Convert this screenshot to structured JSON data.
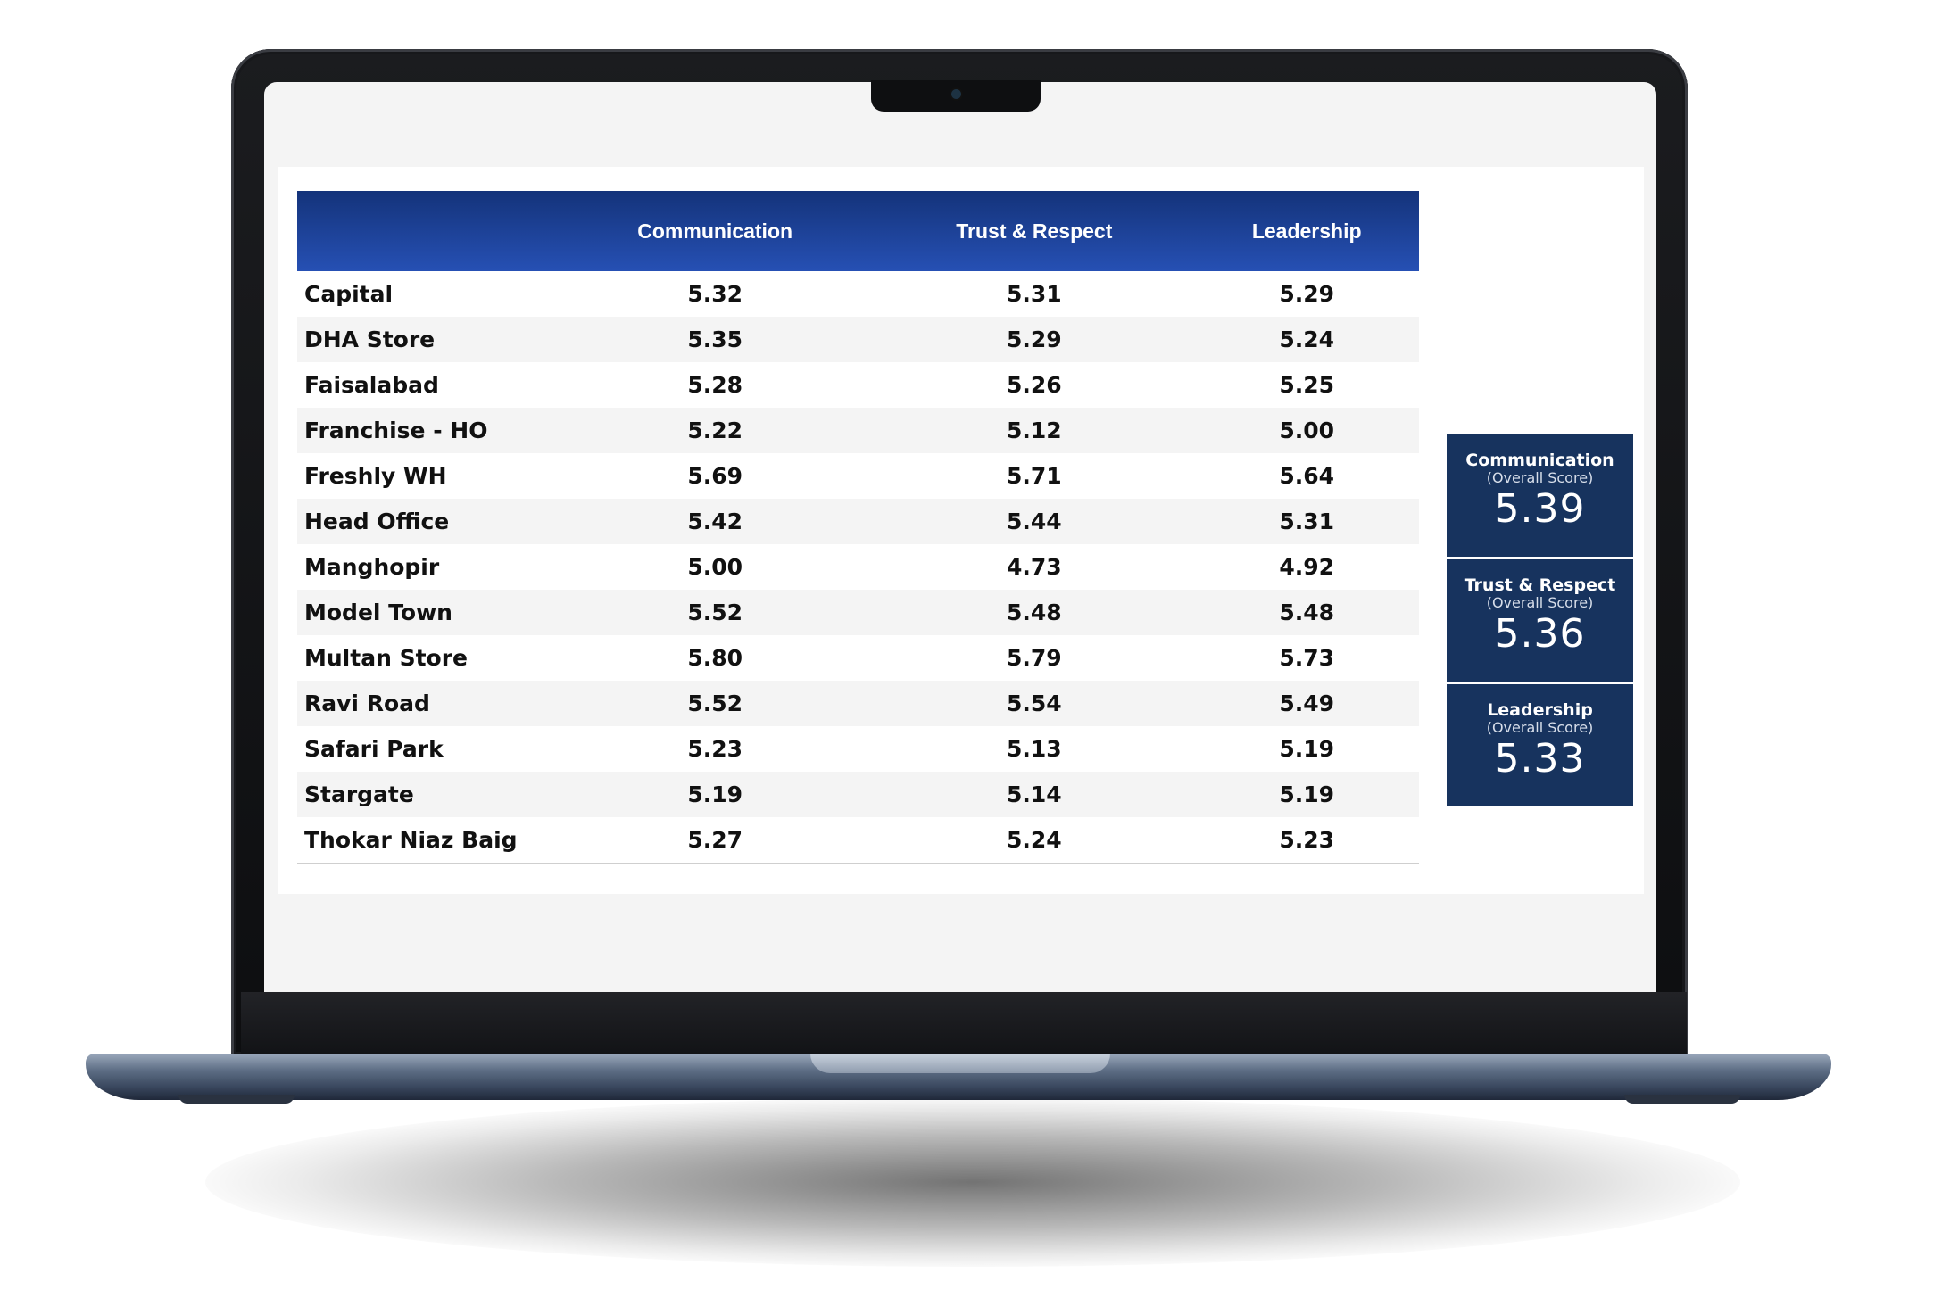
{
  "table": {
    "columns": [
      "",
      "Communication",
      "Trust & Respect",
      "Leadership"
    ],
    "rows": [
      {
        "location": "Capital",
        "communication": "5.32",
        "trust_respect": "5.31",
        "leadership": "5.29"
      },
      {
        "location": "DHA Store",
        "communication": "5.35",
        "trust_respect": "5.29",
        "leadership": "5.24"
      },
      {
        "location": "Faisalabad",
        "communication": "5.28",
        "trust_respect": "5.26",
        "leadership": "5.25"
      },
      {
        "location": "Franchise - HO",
        "communication": "5.22",
        "trust_respect": "5.12",
        "leadership": "5.00"
      },
      {
        "location": "Freshly WH",
        "communication": "5.69",
        "trust_respect": "5.71",
        "leadership": "5.64"
      },
      {
        "location": "Head Office",
        "communication": "5.42",
        "trust_respect": "5.44",
        "leadership": "5.31"
      },
      {
        "location": "Manghopir",
        "communication": "5.00",
        "trust_respect": "4.73",
        "leadership": "4.92"
      },
      {
        "location": "Model Town",
        "communication": "5.52",
        "trust_respect": "5.48",
        "leadership": "5.48"
      },
      {
        "location": "Multan Store",
        "communication": "5.80",
        "trust_respect": "5.79",
        "leadership": "5.73"
      },
      {
        "location": "Ravi Road",
        "communication": "5.52",
        "trust_respect": "5.54",
        "leadership": "5.49"
      },
      {
        "location": "Safari Park",
        "communication": "5.23",
        "trust_respect": "5.13",
        "leadership": "5.19"
      },
      {
        "location": "Stargate",
        "communication": "5.19",
        "trust_respect": "5.14",
        "leadership": "5.19"
      },
      {
        "location": "Thokar Niaz Baig",
        "communication": "5.27",
        "trust_respect": "5.24",
        "leadership": "5.23"
      }
    ]
  },
  "summary_cards": [
    {
      "title": "Communication",
      "subtitle": "(Overall Score)",
      "value": "5.39"
    },
    {
      "title": "Trust & Respect",
      "subtitle": "(Overall Score)",
      "value": "5.36"
    },
    {
      "title": "Leadership",
      "subtitle": "(Overall Score)",
      "value": "5.33"
    }
  ],
  "colors": {
    "header_gradient_top": "#14337a",
    "header_gradient_bottom": "#2650b4",
    "card_background": "#17335e",
    "row_alt": "#f4f4f4"
  }
}
